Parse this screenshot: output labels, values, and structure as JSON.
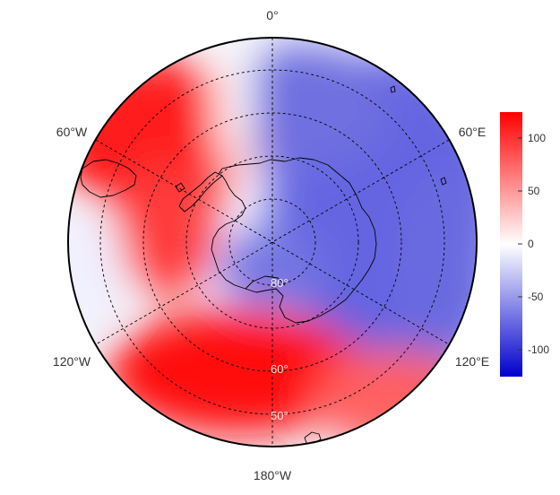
{
  "map": {
    "projection": "south-polar-stereographic",
    "meridian_labels": {
      "top": "0°",
      "bottom": "180°W",
      "upper_left": "60°W",
      "upper_right": "60°E",
      "lower_left": "120°W",
      "lower_right": "120°E"
    },
    "latitude_labels": [
      "80°",
      "60°",
      "50°"
    ],
    "graticule_latitudes_deg": [
      -80,
      -70,
      -60,
      -50,
      -40
    ],
    "graticule_meridians_deg": [
      0,
      60,
      120,
      180,
      240,
      300
    ],
    "field_colors": {
      "positive": "#ff0000",
      "neutral": "#ffffff",
      "negative": "#3a3ad6"
    }
  },
  "colorbar": {
    "ticks": [
      "100",
      "50",
      "0",
      "-50",
      "-100"
    ],
    "tick_values": [
      100,
      50,
      0,
      -50,
      -100
    ],
    "range": [
      -125,
      125
    ],
    "colors": {
      "top": "#ff0000",
      "middle": "#ffffff",
      "bottom": "#0000cc"
    }
  }
}
